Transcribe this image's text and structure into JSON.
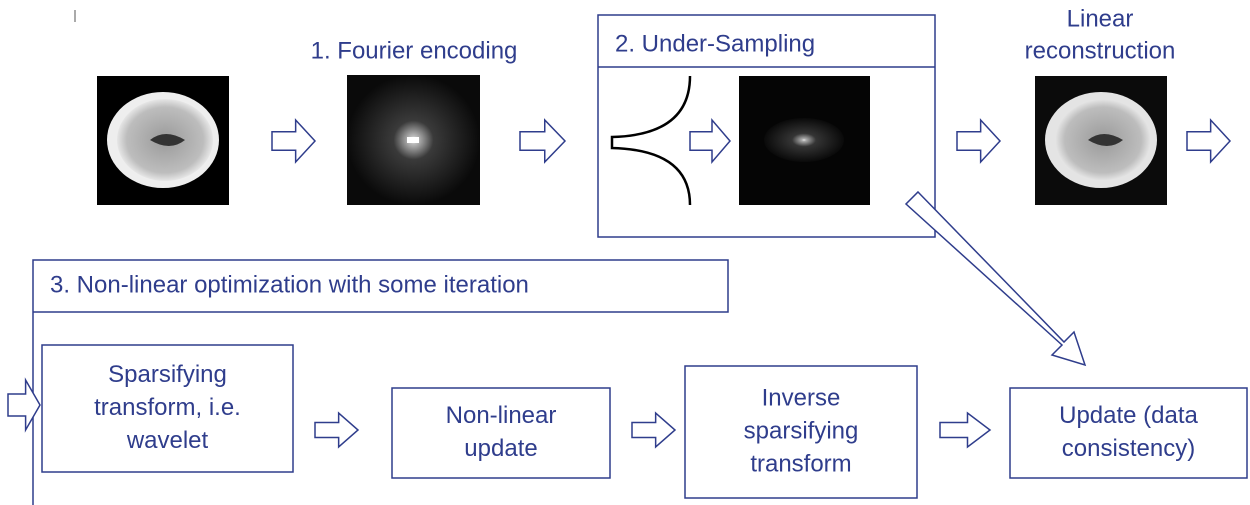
{
  "top": {
    "step1": "1. Fourier encoding",
    "step2": "2. Under-Sampling",
    "linear": [
      "Linear",
      "reconstruction"
    ]
  },
  "step3": {
    "title": "3. Non-linear optimization with some iteration",
    "boxes": [
      [
        "Sparsifying",
        "transform, i.e.",
        "wavelet"
      ],
      [
        "Non-linear",
        "update"
      ],
      [
        "Inverse",
        "sparsifying",
        "transform"
      ],
      [
        "Update (data",
        "consistency)"
      ]
    ]
  }
}
